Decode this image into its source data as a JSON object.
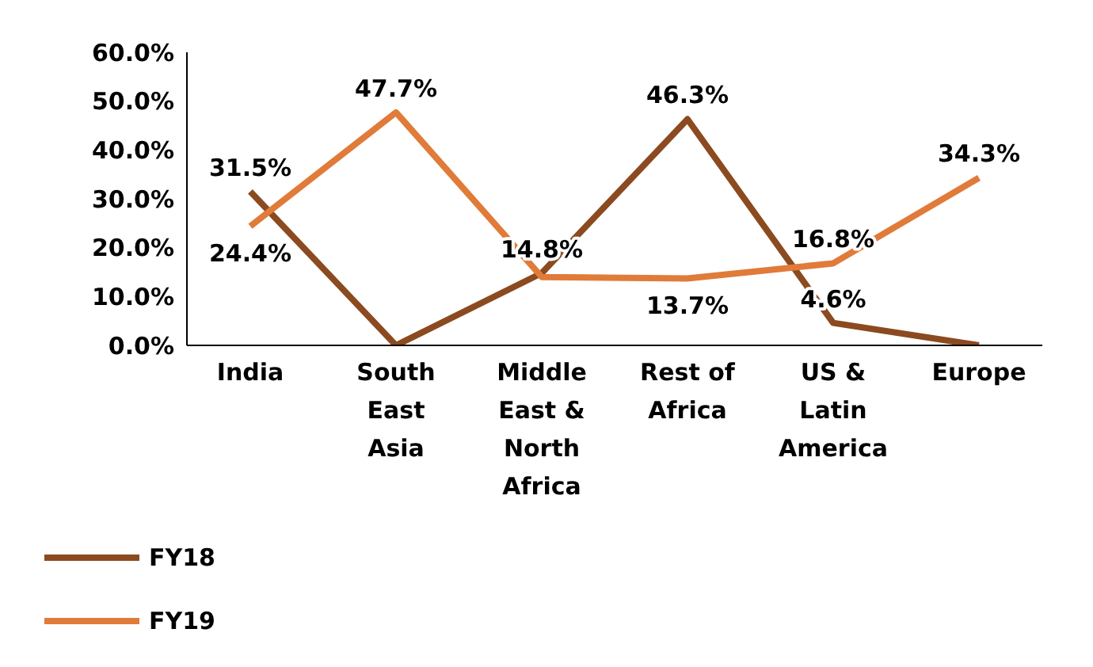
{
  "chart_data": {
    "type": "line",
    "categories": [
      "India",
      "South East Asia",
      "Middle East & North Africa",
      "Rest of Africa",
      "US & Latin America",
      "Europe"
    ],
    "series": [
      {
        "name": "FY18",
        "color": "#8b4a1f",
        "values": [
          31.5,
          0,
          14.8,
          46.3,
          4.6,
          0
        ],
        "value_labels": [
          "31.5%",
          null,
          "14.8%",
          "46.3%",
          "4.6%",
          null
        ]
      },
      {
        "name": "FY19",
        "color": "#e07b39",
        "values": [
          24.4,
          47.7,
          14,
          13.7,
          16.8,
          34.3
        ],
        "value_labels": [
          "24.4%",
          "47.7%",
          null,
          "13.7%",
          "16.8%",
          "34.3%"
        ]
      }
    ],
    "ylim": [
      0,
      60
    ],
    "yticks": [
      {
        "value": 0,
        "label": "0.0%"
      },
      {
        "value": 10,
        "label": "10.0%"
      },
      {
        "value": 20,
        "label": "20.0%"
      },
      {
        "value": 30,
        "label": "30.0%"
      },
      {
        "value": 40,
        "label": "40.0%"
      },
      {
        "value": 50,
        "label": "50.0%"
      },
      {
        "value": 60,
        "label": "60.0%"
      }
    ],
    "grid": false,
    "legend": "bottom left",
    "marker": "none",
    "line_style": "solid"
  }
}
